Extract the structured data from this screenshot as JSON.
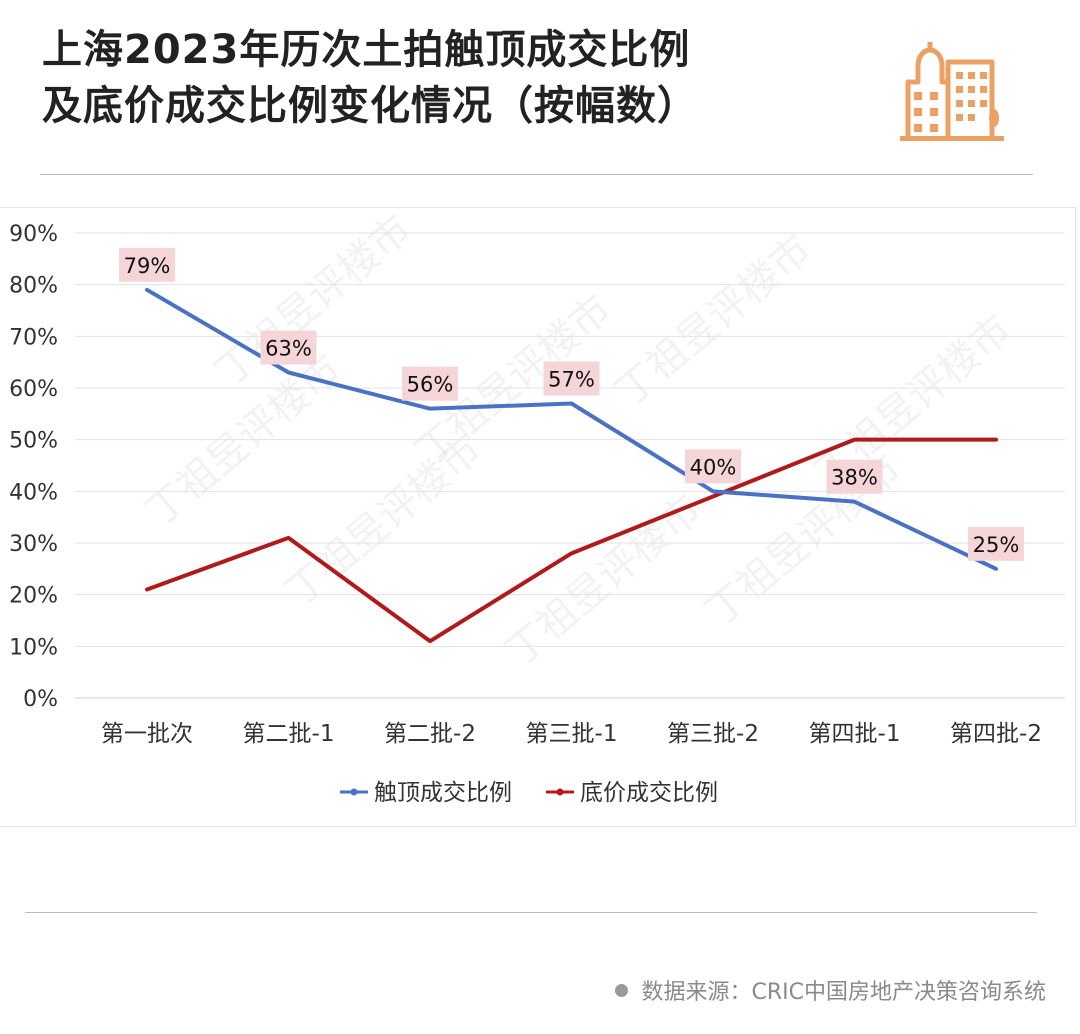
{
  "header": {
    "title_line1": "上海2023年历次土拍触顶成交比例",
    "title_line2": "及底价成交比例变化情况（按幅数）"
  },
  "watermark": {
    "text": "丁祖昱评楼市"
  },
  "colors": {
    "series_top": "#4a72c4",
    "series_floor": "#b01a1a",
    "label_bg": "#f6d5d8",
    "logo": "#eba064"
  },
  "chart_data": {
    "type": "line",
    "categories": [
      "第一批次",
      "第二批-1",
      "第二批-2",
      "第三批-1",
      "第三批-2",
      "第四批-1",
      "第四批-2"
    ],
    "series": [
      {
        "name": "触顶成交比例",
        "values": [
          79,
          63,
          56,
          57,
          40,
          38,
          25
        ],
        "labels": [
          "79%",
          "63%",
          "56%",
          "57%",
          "40%",
          "38%",
          "25%"
        ]
      },
      {
        "name": "底价成交比例",
        "values": [
          21,
          31,
          11,
          28,
          39,
          50,
          50
        ]
      }
    ],
    "ylim": [
      0,
      90
    ],
    "yticks": [
      "0%",
      "10%",
      "20%",
      "30%",
      "40%",
      "50%",
      "60%",
      "70%",
      "80%",
      "90%"
    ],
    "grid": true,
    "legend": "bottom"
  },
  "footer": {
    "source": "数据来源：CRIC中国房地产决策咨询系统"
  }
}
